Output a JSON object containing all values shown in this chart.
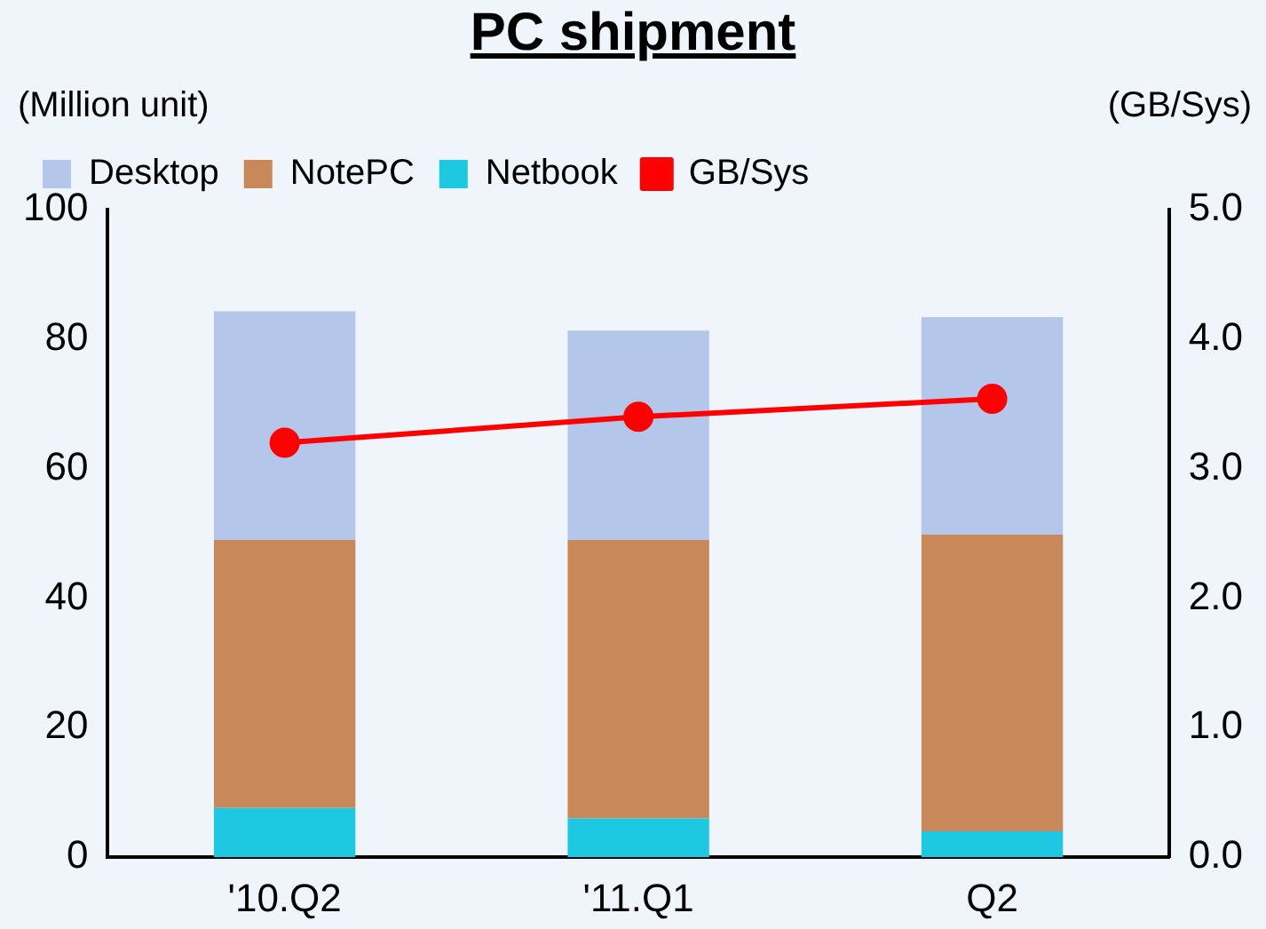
{
  "chart_data": {
    "type": "bar",
    "title": "PC shipment",
    "ylabel": "(Million unit)",
    "y2label": "(GB/Sys)",
    "categories": [
      "'10.Q2",
      "'11.Q1",
      "Q2"
    ],
    "stacked": true,
    "series": [
      {
        "name": "Netbook",
        "color": "#1ec8e0",
        "values": [
          7.6,
          6,
          4
        ]
      },
      {
        "name": "NotePC",
        "color": "#c8885a",
        "values": [
          41.4,
          43,
          45.8
        ]
      },
      {
        "name": "Desktop",
        "color": "#b4c6ea",
        "values": [
          35.3,
          32.3,
          33.6
        ]
      },
      {
        "name": "GB/Sys",
        "type": "line",
        "axis": "y2",
        "color": "#ff0000",
        "values": [
          3.2,
          3.4,
          3.54
        ]
      }
    ],
    "ylim": [
      0,
      100
    ],
    "yticks": [
      0,
      20,
      40,
      60,
      80,
      100
    ],
    "y2lim": [
      0,
      5
    ],
    "y2ticks": [
      {
        "value": 0,
        "label": "0.0"
      },
      {
        "value": 1,
        "label": "1.0"
      },
      {
        "value": 2,
        "label": "2.0"
      },
      {
        "value": 3,
        "label": "3.0"
      },
      {
        "value": 4,
        "label": "4.0"
      },
      {
        "value": 5,
        "label": "5.0"
      }
    ],
    "grid": false,
    "legend": "top left",
    "marker": "circle",
    "line_style": "solid"
  }
}
